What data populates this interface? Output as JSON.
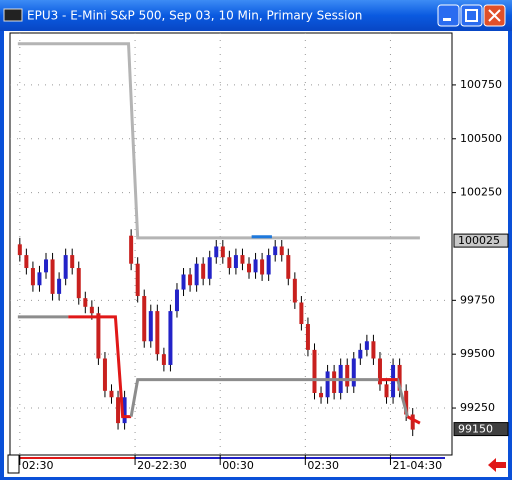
{
  "window": {
    "title": "EPU3 - E-Mini S&P 500, Sep 03, 10 Min, Primary Session"
  },
  "chart_data": {
    "type": "candlestick",
    "up_color": "#2323c8",
    "down_color": "#c8201e",
    "open": [
      100010,
      99960,
      99900,
      99820,
      99880,
      99940,
      99780,
      99850,
      99960,
      99900,
      99760,
      99720,
      99690,
      99480,
      99330,
      99300,
      99180,
      100050,
      99920,
      99770,
      99560,
      99700,
      99500,
      99450,
      99700,
      99800,
      99870,
      99820,
      99920,
      99850,
      99950,
      100000,
      99950,
      99900,
      99960,
      99920,
      99880,
      99940,
      99870,
      99960,
      100000,
      99960,
      99850,
      99740,
      99640,
      99520,
      99320,
      99300,
      99420,
      99320,
      99450,
      99350,
      99480,
      99520,
      99560,
      99480,
      99360,
      99300,
      99450,
      99330,
      99220
    ],
    "high": [
      100040,
      99990,
      99930,
      99910,
      99970,
      99970,
      99880,
      99990,
      99990,
      99930,
      99790,
      99750,
      99720,
      99510,
      99360,
      99330,
      99330,
      100080,
      99950,
      99800,
      99730,
      99730,
      99530,
      99730,
      99830,
      99900,
      99900,
      99950,
      99950,
      99980,
      100030,
      100030,
      99980,
      99990,
      99990,
      99950,
      99970,
      99970,
      99990,
      100030,
      100030,
      99990,
      99880,
      99770,
      99670,
      99550,
      99350,
      99450,
      99450,
      99480,
      99480,
      99510,
      99550,
      99590,
      99590,
      99510,
      99390,
      99480,
      99480,
      99360,
      99250
    ],
    "low": [
      99930,
      99870,
      99790,
      99790,
      99850,
      99750,
      99750,
      99820,
      99870,
      99730,
      99690,
      99660,
      99450,
      99300,
      99270,
      99150,
      99150,
      99890,
      99740,
      99530,
      99530,
      99470,
      99420,
      99420,
      99670,
      99770,
      99790,
      99790,
      99820,
      99820,
      99920,
      99920,
      99870,
      99870,
      99890,
      99850,
      99850,
      99840,
      99840,
      99930,
      99930,
      99820,
      99710,
      99610,
      99490,
      99290,
      99270,
      99270,
      99290,
      99290,
      99320,
      99320,
      99450,
      99490,
      99450,
      99330,
      99270,
      99270,
      99300,
      99190,
      99120
    ],
    "close": [
      99960,
      99900,
      99820,
      99880,
      99940,
      99780,
      99850,
      99960,
      99900,
      99760,
      99720,
      99690,
      99480,
      99330,
      99300,
      99180,
      99300,
      99920,
      99770,
      99560,
      99700,
      99500,
      99450,
      99700,
      99800,
      99870,
      99820,
      99920,
      99850,
      99950,
      100000,
      99950,
      99900,
      99960,
      99920,
      99880,
      99940,
      99870,
      99960,
      100000,
      99960,
      99850,
      99740,
      99640,
      99520,
      99320,
      99300,
      99420,
      99320,
      99450,
      99350,
      99480,
      99520,
      99560,
      99480,
      99360,
      99300,
      99450,
      99330,
      99220,
      99150
    ],
    "lines": [
      {
        "color": "#b4b4b4",
        "x": [
          -0.3,
          16.6,
          18,
          61.1
        ],
        "values": [
          100941,
          100941,
          100040,
          100040
        ]
      },
      {
        "color": "#8c8c8c",
        "x": [
          -0.3,
          7.4
        ],
        "values": [
          99673,
          99673
        ]
      },
      {
        "color": "#e01818",
        "x": [
          7.4,
          14.6,
          15.7,
          17
        ],
        "values": [
          99673,
          99673,
          99210,
          99210
        ]
      },
      {
        "color": "#8c8c8c",
        "x": [
          17,
          18,
          57.7,
          59.2
        ],
        "values": [
          99210,
          99382,
          99382,
          99210
        ]
      },
      {
        "color": "#e01818",
        "x": [
          59.2,
          61.1
        ],
        "values": [
          99210,
          99180
        ]
      },
      {
        "color": "#e01818",
        "x": [
          54.8,
          57.7
        ],
        "values": [
          99382,
          99382
        ]
      },
      {
        "color": "#1e78dc",
        "x": [
          35.4,
          38.5
        ],
        "values": [
          100045,
          100045
        ]
      }
    ],
    "xlim": [
      -1.5,
      66
    ],
    "xticks": [
      {
        "value": 0,
        "label": "02:30"
      },
      {
        "value": 17.6,
        "label": "20-22:30"
      },
      {
        "value": 30.6,
        "label": "00:30"
      },
      {
        "value": 43.6,
        "label": "02:30"
      },
      {
        "value": 56.6,
        "label": "21-04:30"
      }
    ],
    "ylim": [
      99032,
      100991
    ],
    "yticks": [
      99250,
      99500,
      99750,
      100250,
      100500,
      100750
    ],
    "price_markers": [
      100025,
      99150
    ],
    "grid": true
  }
}
